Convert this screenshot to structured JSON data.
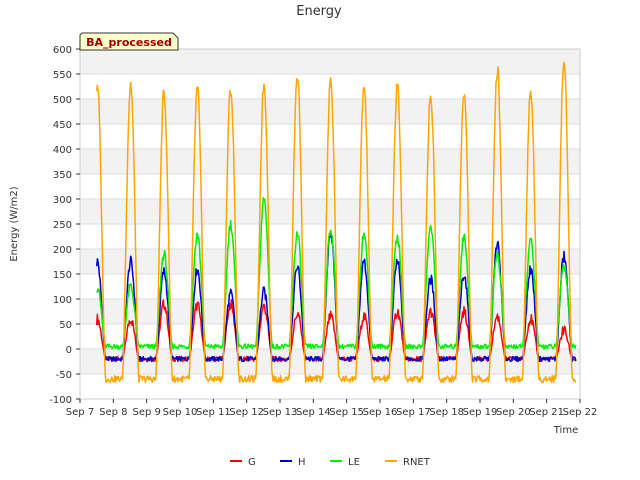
{
  "chart_data": {
    "type": "line",
    "title": "Energy",
    "xlabel": "Time",
    "ylabel": "Energy (W/m2)",
    "badge": "BA_processed",
    "xlim": [
      "2016-09-07",
      "2016-09-22"
    ],
    "ylim": [
      -100,
      600
    ],
    "x_ticks": [
      "Sep 7",
      "Sep 8",
      "Sep 9",
      "Sep 10",
      "Sep 11",
      "Sep 12",
      "Sep 13",
      "Sep 14",
      "Sep 15",
      "Sep 16",
      "Sep 17",
      "Sep 18",
      "Sep 19",
      "Sep 20",
      "Sep 21",
      "Sep 22"
    ],
    "y_ticks": [
      -100,
      -50,
      0,
      50,
      100,
      150,
      200,
      250,
      300,
      350,
      400,
      450,
      500,
      550,
      600
    ],
    "days": [
      "Sep 8",
      "Sep 9",
      "Sep 10",
      "Sep 11",
      "Sep 12",
      "Sep 13",
      "Sep 14",
      "Sep 15",
      "Sep 16",
      "Sep 17",
      "Sep 18",
      "Sep 19",
      "Sep 20",
      "Sep 21"
    ],
    "data_range": [
      "Sep 7 12:00",
      "Sep 21 21:00"
    ],
    "grid": true,
    "legend_position": "bottom",
    "series": [
      {
        "name": "G",
        "color": "#ff0000",
        "daily_peak": [
          60,
          90,
          88,
          90,
          85,
          70,
          65,
          65,
          75,
          75,
          75,
          65,
          60,
          38
        ],
        "night_value": -20
      },
      {
        "name": "H",
        "color": "#0000cc",
        "daily_peak": [
          175,
          155,
          160,
          110,
          115,
          165,
          235,
          175,
          175,
          140,
          150,
          210,
          160,
          185
        ],
        "night_value": -20
      },
      {
        "name": "LE",
        "color": "#00ee00",
        "daily_peak": [
          125,
          190,
          230,
          250,
          300,
          230,
          240,
          230,
          225,
          245,
          225,
          190,
          215,
          170
        ],
        "night_value": 5
      },
      {
        "name": "RNET",
        "color": "#ffa500",
        "daily_peak": [
          530,
          510,
          520,
          520,
          530,
          550,
          535,
          525,
          530,
          510,
          515,
          560,
          515,
          575
        ],
        "night_value": -60
      }
    ]
  }
}
